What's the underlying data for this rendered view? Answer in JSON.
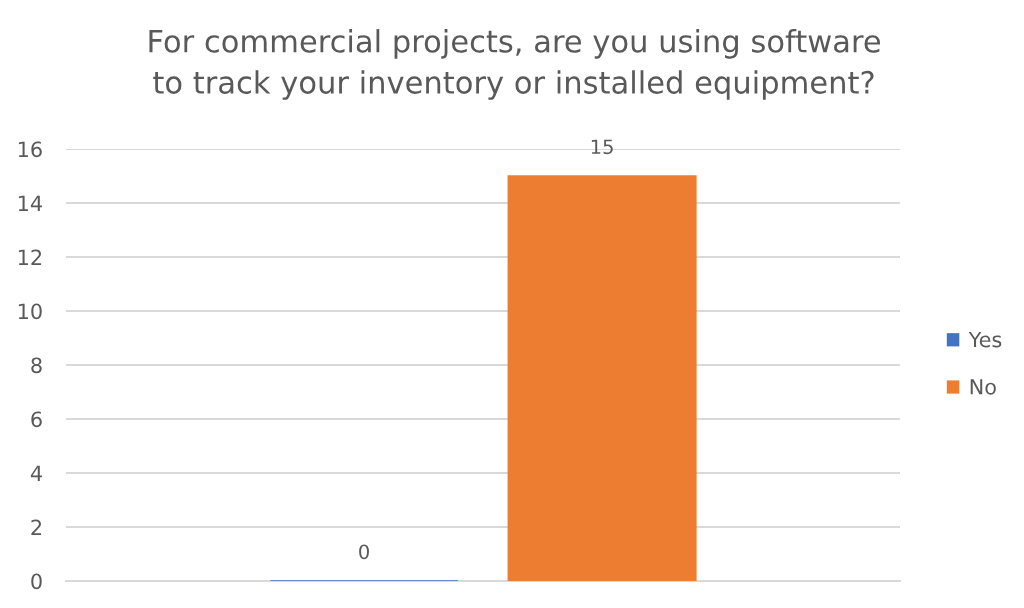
{
  "chart_data": {
    "type": "bar",
    "title": "For commercial projects, are you using software\nto track your inventory or installed equipment?",
    "categories": [
      null
    ],
    "series": [
      {
        "name": "Yes",
        "color": "#4472c4",
        "values": [
          0
        ]
      },
      {
        "name": "No",
        "color": "#ed7d31",
        "values": [
          15
        ]
      }
    ],
    "ylim": [
      0,
      16
    ],
    "yticks": [
      0,
      2,
      4,
      6,
      8,
      10,
      12,
      14,
      16
    ],
    "grid": "y",
    "legend": "right",
    "data_labels": true,
    "tick_labels": "y"
  }
}
